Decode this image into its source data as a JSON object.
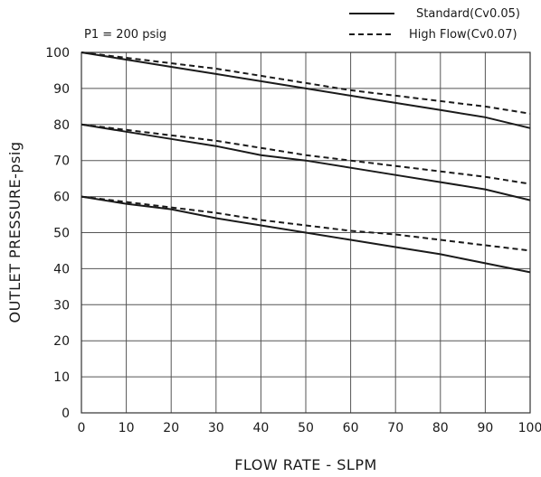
{
  "chart_data": {
    "type": "line",
    "xlabel": "FLOW RATE - SLPM",
    "ylabel": "OUTLET PRESSURE-psig",
    "xlim": [
      0,
      100
    ],
    "ylim": [
      0,
      100
    ],
    "xticks": [
      "0",
      "10",
      "20",
      "30",
      "40",
      "50",
      "60",
      "70",
      "80",
      "90",
      "100"
    ],
    "yticks": [
      "0",
      "10",
      "20",
      "30",
      "40",
      "50",
      "60",
      "70",
      "80",
      "90",
      "100"
    ],
    "grid": true,
    "annotation": "P1 = 200 psig",
    "legend_position": "top-right",
    "legend": [
      {
        "label": "Standard(Cv0.05)",
        "style": "solid"
      },
      {
        "label": "High Flow(Cv0.07)",
        "style": "dashed"
      }
    ],
    "series": [
      {
        "legend": "Standard(Cv0.05)",
        "style": "solid",
        "x": [
          0,
          10,
          20,
          30,
          40,
          50,
          60,
          70,
          80,
          90,
          100
        ],
        "y": [
          100,
          98,
          96,
          94,
          92,
          90,
          88,
          86,
          84,
          82,
          79
        ]
      },
      {
        "legend": "High Flow(Cv0.07)",
        "style": "dashed",
        "x": [
          0,
          10,
          20,
          30,
          40,
          50,
          60,
          70,
          80,
          90,
          100
        ],
        "y": [
          100,
          98.5,
          97,
          95.5,
          93.5,
          91.5,
          89.5,
          88,
          86.5,
          85,
          83
        ]
      },
      {
        "legend": "Standard(Cv0.05)",
        "style": "solid",
        "x": [
          0,
          10,
          20,
          30,
          40,
          50,
          60,
          70,
          80,
          90,
          100
        ],
        "y": [
          80,
          78,
          76,
          74,
          71.5,
          70,
          68,
          66,
          64,
          62,
          59
        ]
      },
      {
        "legend": "High Flow(Cv0.07)",
        "style": "dashed",
        "x": [
          0,
          10,
          20,
          30,
          40,
          50,
          60,
          70,
          80,
          90,
          100
        ],
        "y": [
          80,
          78.5,
          77,
          75.5,
          73.5,
          71.5,
          70,
          68.5,
          67,
          65.5,
          63.5
        ]
      },
      {
        "legend": "Standard(Cv0.05)",
        "style": "solid",
        "x": [
          0,
          10,
          20,
          30,
          40,
          50,
          60,
          70,
          80,
          90,
          100
        ],
        "y": [
          60,
          58,
          56.5,
          54,
          52,
          50,
          48,
          46,
          44,
          41.5,
          39
        ]
      },
      {
        "legend": "High Flow(Cv0.07)",
        "style": "dashed",
        "x": [
          0,
          10,
          20,
          30,
          40,
          50,
          60,
          70,
          80,
          90,
          100
        ],
        "y": [
          60,
          58.5,
          57,
          55.5,
          53.5,
          52,
          50.5,
          49.5,
          48,
          46.5,
          45
        ]
      }
    ]
  }
}
